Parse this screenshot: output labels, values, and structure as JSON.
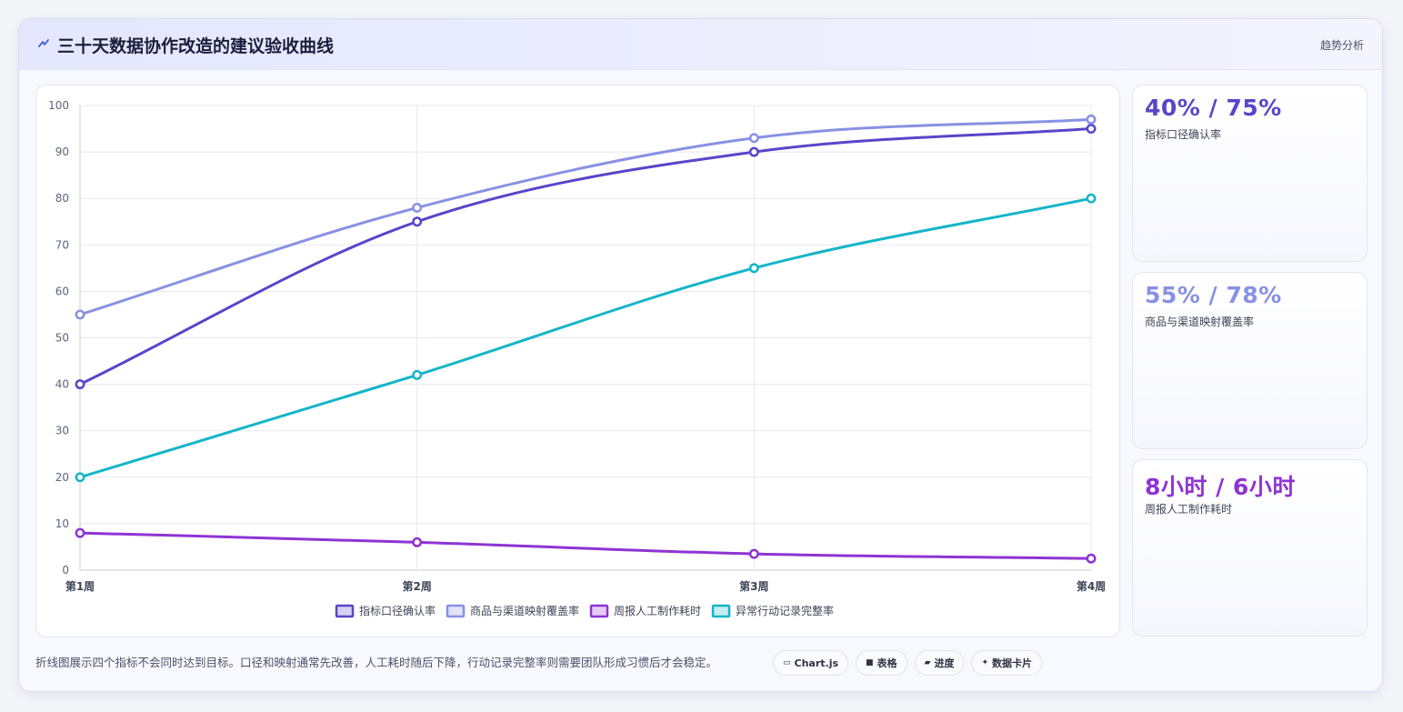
{
  "header": {
    "title": "三十天数据协作改造的建议验收曲线",
    "tag": "趋势分析",
    "icon": "trend-icon"
  },
  "chart_data": {
    "type": "line",
    "categories": [
      "第1周",
      "第2周",
      "第3周",
      "第4周"
    ],
    "ylim": [
      0,
      100
    ],
    "yticks": [
      0,
      10,
      20,
      30,
      40,
      50,
      60,
      70,
      80,
      90,
      100
    ],
    "grid": true,
    "legend_position": "bottom",
    "series": [
      {
        "name": "指标口径确认率",
        "values": [
          40,
          75,
          90,
          95
        ],
        "color": "#5746c9"
      },
      {
        "name": "商品与渠道映射覆盖率",
        "values": [
          55,
          78,
          93,
          97
        ],
        "color": "#8891e3"
      },
      {
        "name": "周报人工制作耗时",
        "values": [
          8,
          6,
          3.5,
          2.5
        ],
        "color": "#8e34d4"
      },
      {
        "name": "异常行动记录完整率",
        "values": [
          20,
          42,
          65,
          80
        ],
        "color": "#14b5c8"
      }
    ]
  },
  "stats": [
    {
      "value": "40% / 75%",
      "label": "指标口径确认率",
      "color": "#5746c9"
    },
    {
      "value": "55% / 78%",
      "label": "商品与渠道映射覆盖率",
      "color": "#8891e3"
    },
    {
      "value": "8小时 / 6小时",
      "label": "周报人工制作耗时",
      "color": "#8e34d4"
    }
  ],
  "footnote": "折线图展示四个指标不会同时达到目标。口径和映射通常先改善，人工耗时随后下降，行动记录完整率则需要团队形成习惯后才会稳定。",
  "toolbar": [
    {
      "icon": "▭",
      "label": "Chart.js",
      "icon_name": "chart-icon"
    },
    {
      "icon": "■",
      "label": "表格",
      "icon_name": "table-icon"
    },
    {
      "icon": "▰",
      "label": "进度",
      "icon_name": "progress-icon"
    },
    {
      "icon": "✦",
      "label": "数据卡片",
      "icon_name": "sparkle-icon"
    }
  ]
}
